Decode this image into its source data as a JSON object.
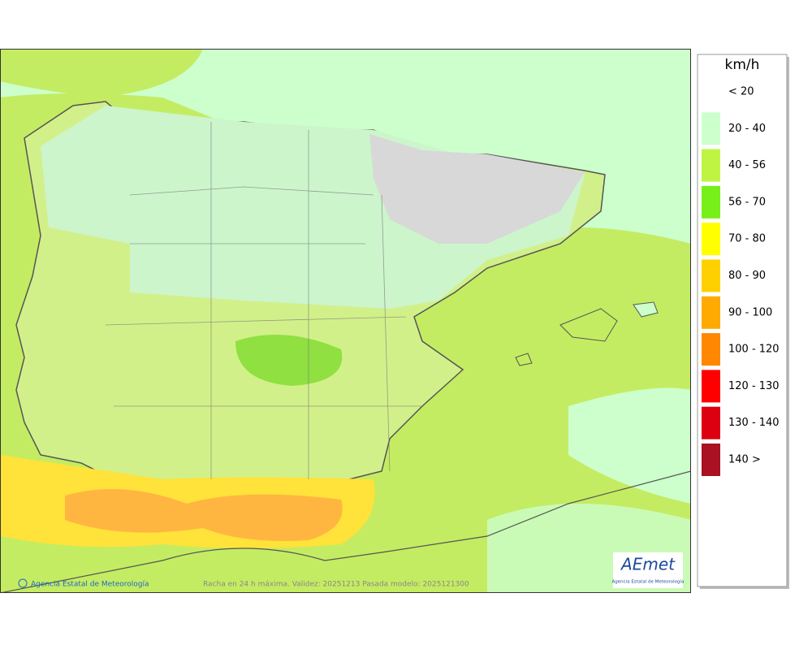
{
  "map": {
    "caption": "Racha en 24 h máxima. Validez: 20251213 Pasada modelo: 2025121300",
    "copyright": "Agencia Estatal de Meteorología"
  },
  "logo": {
    "name": "AEmet",
    "subtitle": "Agencia Estatal de Meteorología"
  },
  "legend": {
    "unit": "km/h",
    "items": [
      {
        "label": "< 20",
        "color": "#ffffff"
      },
      {
        "label": "20 - 40",
        "color": "#ccffcc"
      },
      {
        "label": "40 - 56",
        "color": "#bff542"
      },
      {
        "label": "56 - 70",
        "color": "#77f01a"
      },
      {
        "label": "70 - 80",
        "color": "#ffff00"
      },
      {
        "label": "80 - 90",
        "color": "#ffd000"
      },
      {
        "label": "90 - 100",
        "color": "#ffaa00"
      },
      {
        "label": "100 - 120",
        "color": "#ff8800"
      },
      {
        "label": "120 - 130",
        "color": "#ff0000"
      },
      {
        "label": "130 - 140",
        "color": "#dd0011"
      },
      {
        "label": "140 >",
        "color": "#aa1122"
      }
    ]
  }
}
